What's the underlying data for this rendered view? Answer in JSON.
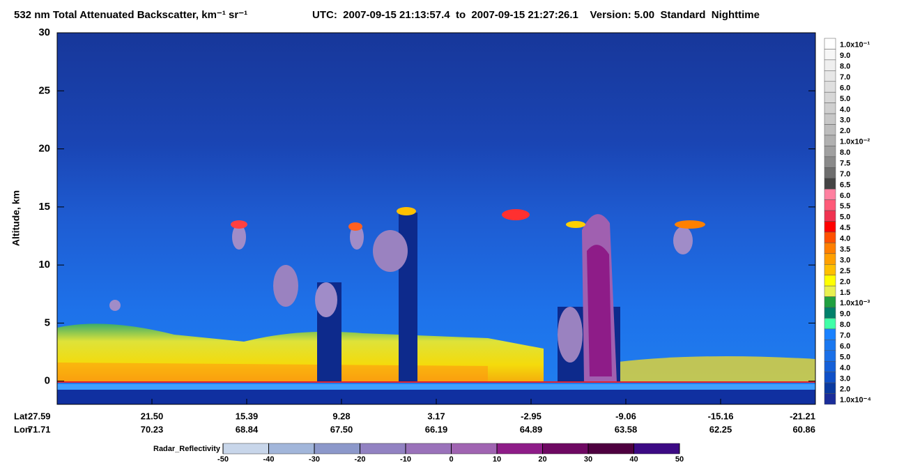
{
  "chart_data": {
    "type": "curtain",
    "title": "532 nm Total Attenuated Backscatter, km⁻¹ sr⁻¹",
    "subtitle": "UTC:  2007-09-15 21:13:57.4  to  2007-09-15 21:27:26.1    Version: 5.00  Standard  Nighttime",
    "y_label": "Altitude, km",
    "ylim": [
      -2,
      30
    ],
    "yticks": [
      0,
      5,
      10,
      15,
      20,
      25,
      30
    ],
    "x_rows": [
      {
        "name": "Lat",
        "values": [
          27.59,
          {
            "value": 21.5,
            "label": "21.50"
          },
          15.39,
          9.28,
          3.17,
          -2.95,
          -9.06,
          -15.16,
          -21.21
        ]
      },
      {
        "name": "Lon",
        "values": [
          71.71,
          70.23,
          68.84,
          {
            "value": 67.5,
            "label": "67.50"
          },
          66.19,
          64.89,
          63.58,
          62.25,
          60.86
        ]
      }
    ],
    "colorbar": {
      "labels": [
        "1.0x10⁻¹",
        "9.0",
        "8.0",
        "7.0",
        "6.0",
        "5.0",
        "4.0",
        "3.0",
        "2.0",
        "1.0x10⁻²",
        "8.0",
        "7.5",
        "7.0",
        "6.5",
        "6.0",
        "5.5",
        "5.0",
        "4.5",
        "4.0",
        "3.5",
        "3.0",
        "2.5",
        "2.0",
        "1.5",
        "1.0x10⁻³",
        "9.0",
        "8.0",
        "7.0",
        "6.0",
        "5.0",
        "4.0",
        "3.0",
        "2.0",
        "1.0x10⁻⁴"
      ],
      "colors": [
        "#ffffff",
        "#f7f7f7",
        "#efefef",
        "#e7e7e7",
        "#dfdfdf",
        "#d7d7d7",
        "#cfcfcf",
        "#c7c7c7",
        "#bdbdbd",
        "#b0b0b0",
        "#a0a0a0",
        "#8a8a8a",
        "#6e6e6e",
        "#444444",
        "#ff80a0",
        "#ff5a78",
        "#f03250",
        "#ff0000",
        "#ff5000",
        "#ff7f00",
        "#ffa000",
        "#ffc000",
        "#ffff00",
        "#e8f050",
        "#20a040",
        "#00806a",
        "#40ffa8",
        "#1a82ff",
        "#1a78f0",
        "#1a70e8",
        "#1560d8",
        "#0f50c8",
        "#0a3aa0",
        "#1a2d9a"
      ]
    },
    "radar_colorbar": {
      "title": "Radar_Reflectivity",
      "ticks": [
        -50,
        -40,
        -30,
        -20,
        -10,
        0,
        10,
        20,
        30,
        40,
        50
      ],
      "colors": [
        "#c8d6ea",
        "#a2b6da",
        "#8c98ca",
        "#9282c2",
        "#9a72ba",
        "#a064b2",
        "#8e1c88",
        "#6e0862",
        "#4e0040",
        "#3c0a84"
      ]
    }
  }
}
